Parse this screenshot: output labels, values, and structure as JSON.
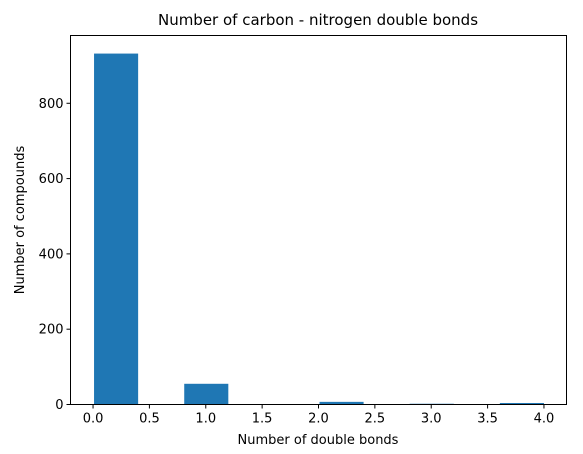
{
  "chart_data": {
    "type": "bar",
    "title": "Number of carbon - nitrogen double bonds",
    "xlabel": "Number of double bonds",
    "ylabel": "Number of compounds",
    "bars": [
      {
        "x0": 0.0,
        "x1": 0.4,
        "value": 932
      },
      {
        "x0": 0.4,
        "x1": 0.8,
        "value": 0
      },
      {
        "x0": 0.8,
        "x1": 1.2,
        "value": 55
      },
      {
        "x0": 1.2,
        "x1": 1.6,
        "value": 0
      },
      {
        "x0": 1.6,
        "x1": 2.0,
        "value": 0
      },
      {
        "x0": 2.0,
        "x1": 2.4,
        "value": 7
      },
      {
        "x0": 2.4,
        "x1": 2.8,
        "value": 0
      },
      {
        "x0": 2.8,
        "x1": 3.2,
        "value": 2
      },
      {
        "x0": 3.2,
        "x1": 3.6,
        "value": 0
      },
      {
        "x0": 3.6,
        "x1": 4.0,
        "value": 4
      }
    ],
    "xlim": [
      -0.2,
      4.2
    ],
    "ylim": [
      0,
      980
    ],
    "xticks": [
      0.0,
      0.5,
      1.0,
      1.5,
      2.0,
      2.5,
      3.0,
      3.5,
      4.0
    ],
    "xtick_labels": [
      "0.0",
      "0.5",
      "1.0",
      "1.5",
      "2.0",
      "2.5",
      "3.0",
      "3.5",
      "4.0"
    ],
    "yticks": [
      0,
      200,
      400,
      600,
      800
    ],
    "ytick_labels": [
      "0",
      "200",
      "400",
      "600",
      "800"
    ],
    "grid": false,
    "bar_color": "#1f77b4"
  }
}
